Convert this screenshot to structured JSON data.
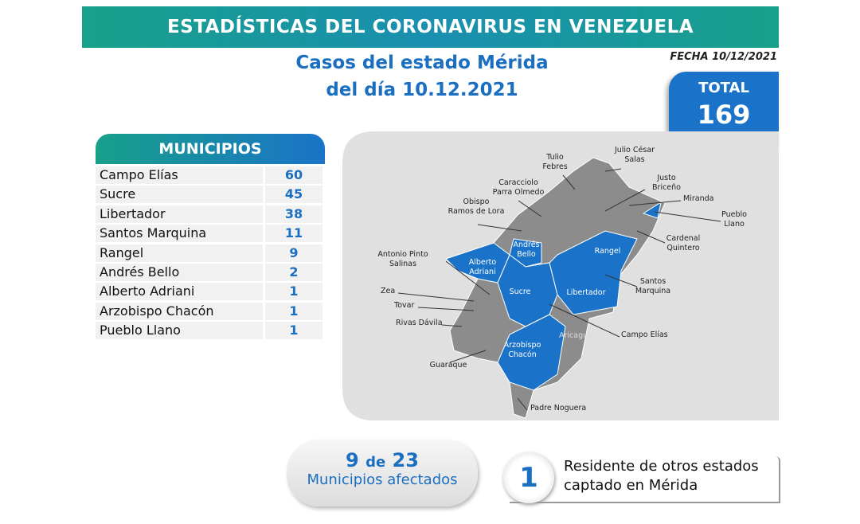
{
  "header": {
    "title": "ESTADÍSTICAS DEL CORONAVIRUS EN VENEZUELA",
    "date": "FECHA 10/12/2021"
  },
  "subtitle": [
    "Casos del estado Mérida",
    "del día 10.12.2021"
  ],
  "total": {
    "label": "TOTAL",
    "value": "169"
  },
  "table": {
    "header": "MUNICIPIOS",
    "rows": [
      [
        "Campo Elías",
        "60"
      ],
      [
        "Sucre",
        "45"
      ],
      [
        "Libertador",
        "38"
      ],
      [
        "Santos Marquina",
        "11"
      ],
      [
        "Rangel",
        "9"
      ],
      [
        "Andrés Bello",
        "2"
      ],
      [
        "Alberto Adriani",
        "1"
      ],
      [
        "Arzobispo Chacón",
        "1"
      ],
      [
        "Pueblo Llano",
        "1"
      ]
    ]
  },
  "map": {
    "labels": [
      [
        "Tulio",
        "Febres"
      ],
      [
        "Julio César",
        "Salas"
      ],
      [
        "Justo",
        "Briceño"
      ],
      [
        "Caracciolo",
        "Parra Olmedo"
      ],
      [
        "Miranda"
      ],
      [
        "Obispo",
        "Ramos de Lora"
      ],
      [
        "Pueblo",
        "Llano"
      ],
      [
        "Cardenal",
        "Quintero"
      ],
      [
        "Antonio Pinto",
        "Salinas"
      ],
      [
        "Andrés",
        "Bello"
      ],
      [
        "Alberto",
        "Adriani"
      ],
      [
        "Rangel"
      ],
      [
        "Santos",
        "Marquina"
      ],
      [
        "Sucre"
      ],
      [
        "Libertador"
      ],
      [
        "Zea"
      ],
      [
        "Tovar"
      ],
      [
        "Rivas Dávila"
      ],
      [
        "Campo Elías"
      ],
      [
        "Aricagua"
      ],
      [
        "Arzobispo",
        "Chacón"
      ],
      [
        "Guaraque"
      ],
      [
        "Padre Noguera"
      ]
    ]
  },
  "summary": {
    "affected": "9",
    "connector": "de",
    "total": "23",
    "affected_label": "Municipios afectados",
    "residents": "1",
    "residents_text": [
      "Residente de otros estados",
      "captado en Mérida"
    ]
  }
}
